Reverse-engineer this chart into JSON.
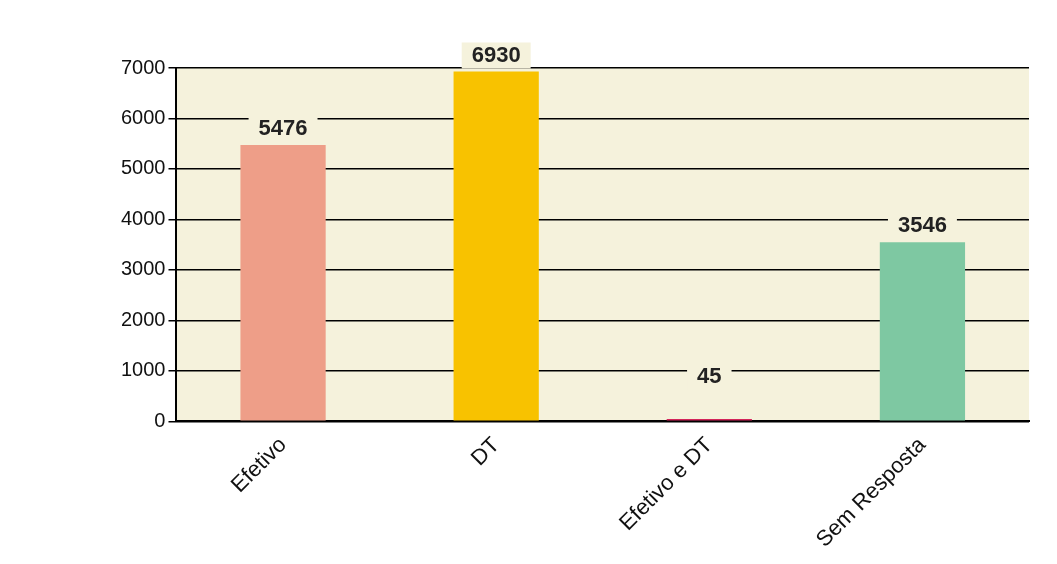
{
  "chart_data": {
    "type": "bar",
    "categories": [
      "Efetivo",
      "DT",
      "Efetivo e DT",
      "Sem Resposta"
    ],
    "values": [
      5476,
      6930,
      45,
      3546
    ],
    "colors": [
      "#ee9e88",
      "#f8c200",
      "#d4245a",
      "#7ec8a2"
    ],
    "ylim": [
      0,
      7000
    ],
    "yticks": [
      0,
      1000,
      2000,
      3000,
      4000,
      5000,
      6000,
      7000
    ],
    "grid": "y",
    "data_labels": true,
    "legend": false
  }
}
